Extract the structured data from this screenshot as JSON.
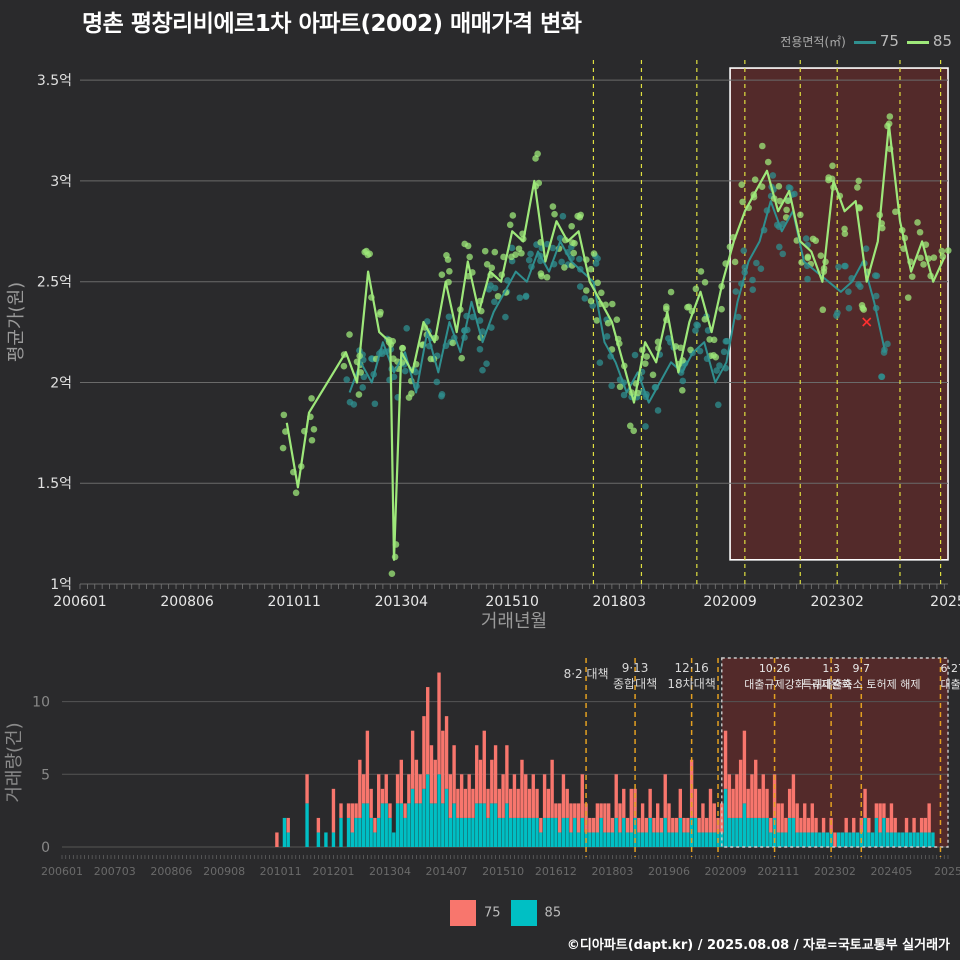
{
  "title": "명촌 평창리비에르1차 아파트(2002) 매매가격 변화",
  "credit": "©디아파트(dapt.kr) / 2025.08.08 / 자료=국토교통부 실거래가",
  "colors": {
    "s75": "#2f8f8f",
    "s85": "#9ee87a",
    "bar75": "#f8766d",
    "bar85": "#00bfc4",
    "vline_top": "#e0e040",
    "vline_bottom": "#e3a020",
    "highlight": "#5a2a2a"
  },
  "legend_top": {
    "title": "전용면적(㎡)",
    "items": [
      {
        "label": "75",
        "color": "#2f8f8f"
      },
      {
        "label": "85",
        "color": "#9ee87a"
      }
    ]
  },
  "legend_bottom": {
    "items": [
      {
        "label": "75",
        "color": "#f8766d"
      },
      {
        "label": "85",
        "color": "#00bfc4"
      }
    ]
  },
  "chart_data": [
    {
      "type": "line",
      "xlabel": "거래년월",
      "ylabel": "평균가(원)",
      "x_range": [
        "2006-01",
        "2025-08"
      ],
      "ylim": [
        1.0,
        3.6
      ],
      "y_ticks": [
        {
          "v": 1.0,
          "label": "1억"
        },
        {
          "v": 1.5,
          "label": "1.5억"
        },
        {
          "v": 2.0,
          "label": "2억"
        },
        {
          "v": 2.5,
          "label": "2.5억"
        },
        {
          "v": 3.0,
          "label": "3억"
        },
        {
          "v": 3.5,
          "label": "3.5억"
        }
      ],
      "x_ticks": [
        {
          "t": "2006-01",
          "label": "200601"
        },
        {
          "t": "2008-06",
          "label": "200806"
        },
        {
          "t": "2010-11",
          "label": "201011"
        },
        {
          "t": "2013-04",
          "label": "201304"
        },
        {
          "t": "2015-10",
          "label": "201510"
        },
        {
          "t": "2018-03",
          "label": "201803"
        },
        {
          "t": "2020-09",
          "label": "202009"
        },
        {
          "t": "2023-02",
          "label": "202302"
        },
        {
          "t": "2025-08",
          "label": "2025"
        }
      ],
      "vlines": [
        "2017-08",
        "2018-09",
        "2019-12",
        "2021-01",
        "2022-04",
        "2023-02",
        "2024-07",
        "2025-06"
      ],
      "highlight": {
        "x": [
          "2020-09",
          "2025-09"
        ],
        "y": [
          1.12,
          3.56
        ]
      },
      "marker": {
        "t": "2023-10",
        "v": 2.3
      },
      "series": [
        {
          "name": "75",
          "points": [
            [
              "2012-02",
              1.95
            ],
            [
              "2012-05",
              2.1
            ],
            [
              "2012-08",
              2.0
            ],
            [
              "2012-11",
              2.2
            ],
            [
              "2013-02",
              2.05
            ],
            [
              "2013-05",
              2.15
            ],
            [
              "2013-08",
              1.95
            ],
            [
              "2013-11",
              2.25
            ],
            [
              "2014-02",
              2.05
            ],
            [
              "2014-05",
              2.3
            ],
            [
              "2014-08",
              2.15
            ],
            [
              "2014-11",
              2.4
            ],
            [
              "2015-02",
              2.2
            ],
            [
              "2015-05",
              2.35
            ],
            [
              "2015-08",
              2.45
            ],
            [
              "2015-11",
              2.55
            ],
            [
              "2016-02",
              2.5
            ],
            [
              "2016-05",
              2.65
            ],
            [
              "2016-08",
              2.55
            ],
            [
              "2016-11",
              2.7
            ],
            [
              "2017-02",
              2.6
            ],
            [
              "2017-05",
              2.55
            ],
            [
              "2017-08",
              2.5
            ],
            [
              "2017-11",
              2.2
            ],
            [
              "2018-02",
              2.1
            ],
            [
              "2018-05",
              1.95
            ],
            [
              "2018-08",
              2.05
            ],
            [
              "2018-11",
              1.9
            ],
            [
              "2019-02",
              2.0
            ],
            [
              "2019-05",
              2.1
            ],
            [
              "2019-08",
              2.05
            ],
            [
              "2019-11",
              2.15
            ],
            [
              "2020-02",
              2.2
            ],
            [
              "2020-05",
              2.0
            ],
            [
              "2020-08",
              2.1
            ],
            [
              "2020-11",
              2.4
            ],
            [
              "2021-02",
              2.6
            ],
            [
              "2021-05",
              2.7
            ],
            [
              "2021-08",
              2.9
            ],
            [
              "2021-11",
              2.75
            ],
            [
              "2022-02",
              2.85
            ],
            [
              "2022-05",
              2.6
            ],
            [
              "2023-03",
              2.45
            ],
            [
              "2023-06",
              2.5
            ],
            [
              "2023-09",
              2.6
            ],
            [
              "2023-12",
              2.4
            ],
            [
              "2024-03",
              2.15
            ]
          ]
        },
        {
          "name": "85",
          "points": [
            [
              "2010-09",
              1.8
            ],
            [
              "2010-12",
              1.48
            ],
            [
              "2011-03",
              1.85
            ],
            [
              "2012-01",
              2.15
            ],
            [
              "2012-04",
              2.0
            ],
            [
              "2012-07",
              2.55
            ],
            [
              "2012-10",
              2.25
            ],
            [
              "2013-01",
              2.2
            ],
            [
              "2013-02",
              1.12
            ],
            [
              "2013-04",
              2.15
            ],
            [
              "2013-07",
              2.05
            ],
            [
              "2013-10",
              2.3
            ],
            [
              "2014-01",
              2.2
            ],
            [
              "2014-04",
              2.5
            ],
            [
              "2014-07",
              2.25
            ],
            [
              "2014-10",
              2.6
            ],
            [
              "2015-01",
              2.35
            ],
            [
              "2015-04",
              2.55
            ],
            [
              "2015-07",
              2.5
            ],
            [
              "2015-10",
              2.75
            ],
            [
              "2016-01",
              2.7
            ],
            [
              "2016-04",
              3.0
            ],
            [
              "2016-07",
              2.6
            ],
            [
              "2016-10",
              2.8
            ],
            [
              "2017-01",
              2.7
            ],
            [
              "2017-04",
              2.75
            ],
            [
              "2017-07",
              2.5
            ],
            [
              "2017-10",
              2.4
            ],
            [
              "2018-01",
              2.3
            ],
            [
              "2018-04",
              2.1
            ],
            [
              "2018-07",
              1.9
            ],
            [
              "2018-10",
              2.2
            ],
            [
              "2019-01",
              2.1
            ],
            [
              "2019-04",
              2.35
            ],
            [
              "2019-07",
              2.05
            ],
            [
              "2019-10",
              2.3
            ],
            [
              "2020-01",
              2.45
            ],
            [
              "2020-04",
              2.25
            ],
            [
              "2020-07",
              2.5
            ],
            [
              "2020-10",
              2.7
            ],
            [
              "2021-01",
              2.85
            ],
            [
              "2021-04",
              2.95
            ],
            [
              "2021-07",
              3.05
            ],
            [
              "2021-10",
              2.85
            ],
            [
              "2022-01",
              2.95
            ],
            [
              "2022-04",
              2.7
            ],
            [
              "2022-07",
              2.65
            ],
            [
              "2022-10",
              2.5
            ],
            [
              "2023-01",
              3.0
            ],
            [
              "2023-04",
              2.85
            ],
            [
              "2023-07",
              2.9
            ],
            [
              "2023-10",
              2.5
            ],
            [
              "2024-01",
              2.7
            ],
            [
              "2024-04",
              3.28
            ],
            [
              "2024-07",
              2.8
            ],
            [
              "2024-10",
              2.55
            ],
            [
              "2025-01",
              2.7
            ],
            [
              "2025-04",
              2.5
            ],
            [
              "2025-07",
              2.62
            ]
          ]
        }
      ]
    },
    {
      "type": "bar",
      "ylabel": "거래량(건)",
      "ylim": [
        0,
        13
      ],
      "y_ticks": [
        0,
        5,
        10
      ],
      "x_ticks": [
        {
          "t": "2006-01",
          "label": "200601"
        },
        {
          "t": "2007-03",
          "label": "200703"
        },
        {
          "t": "2008-06",
          "label": "200806"
        },
        {
          "t": "2009-08",
          "label": "200908"
        },
        {
          "t": "2010-11",
          "label": "201011"
        },
        {
          "t": "2012-01",
          "label": "201201"
        },
        {
          "t": "2013-04",
          "label": "201304"
        },
        {
          "t": "2014-07",
          "label": "201407"
        },
        {
          "t": "2015-10",
          "label": "201510"
        },
        {
          "t": "2016-12",
          "label": "201612"
        },
        {
          "t": "2018-03",
          "label": "201803"
        },
        {
          "t": "2019-06",
          "label": "201906"
        },
        {
          "t": "2020-09",
          "label": "202009"
        },
        {
          "t": "2021-11",
          "label": "202111"
        },
        {
          "t": "2023-02",
          "label": "202302"
        },
        {
          "t": "2024-05",
          "label": "202405"
        },
        {
          "t": "2025-08",
          "label": "2025"
        }
      ],
      "events": [
        {
          "t": "2017-08",
          "lines": [
            "8·2 대책"
          ]
        },
        {
          "t": "2018-09",
          "lines": [
            "9·13",
            "종합대책"
          ]
        },
        {
          "t": "2019-12",
          "lines": [
            "12·16",
            "18차대책"
          ]
        },
        {
          "t": "2020-07",
          "lines": [
            ""
          ]
        },
        {
          "t": "2021-10",
          "lines": [
            "10·26",
            "대출규제강화"
          ]
        },
        {
          "t": "2023-01",
          "lines": [
            "1·3",
            "규제완화"
          ]
        },
        {
          "t": "2023-09",
          "lines": [
            "9·7",
            "특례대출축소 토허제 해제"
          ]
        },
        {
          "t": "2025-06",
          "lines": [
            "6·27",
            "대출규"
          ]
        }
      ],
      "highlight": {
        "x": [
          "2020-08",
          "2025-09"
        ],
        "y": [
          0,
          13
        ]
      },
      "series": [
        {
          "name": "75",
          "color": "#f8766d"
        },
        {
          "name": "85",
          "color": "#00bfc4"
        }
      ],
      "months": [
        "2010-10",
        "2010-12",
        "2011-01",
        "2011-06",
        "2011-09",
        "2011-11",
        "2012-01",
        "2012-03",
        "2012-05",
        "2012-06",
        "2012-07",
        "2012-08",
        "2012-09",
        "2012-10",
        "2012-11",
        "2012-12",
        "2013-01",
        "2013-02",
        "2013-03",
        "2013-04",
        "2013-05",
        "2013-06",
        "2013-07",
        "2013-08",
        "2013-09",
        "2013-10",
        "2013-11",
        "2013-12",
        "2014-01",
        "2014-02",
        "2014-03",
        "2014-04",
        "2014-05",
        "2014-06",
        "2014-07",
        "2014-08",
        "2014-09",
        "2014-10",
        "2014-11",
        "2014-12",
        "2015-01",
        "2015-02",
        "2015-03",
        "2015-04",
        "2015-05",
        "2015-06",
        "2015-07",
        "2015-08",
        "2015-09",
        "2015-10",
        "2015-11",
        "2015-12",
        "2016-01",
        "2016-02",
        "2016-03",
        "2016-04",
        "2016-05",
        "2016-06",
        "2016-07",
        "2016-08",
        "2016-09",
        "2016-10",
        "2016-11",
        "2016-12",
        "2017-01",
        "2017-02",
        "2017-03",
        "2017-04",
        "2017-05",
        "2017-06",
        "2017-07",
        "2017-08",
        "2017-09",
        "2017-10",
        "2017-11",
        "2017-12",
        "2018-01",
        "2018-02",
        "2018-03",
        "2018-04",
        "2018-05",
        "2018-06",
        "2018-07",
        "2018-08",
        "2018-09",
        "2018-10",
        "2018-11",
        "2018-12",
        "2019-01",
        "2019-02",
        "2019-03",
        "2019-04",
        "2019-05",
        "2019-06",
        "2019-07",
        "2019-08",
        "2019-09",
        "2019-10",
        "2019-11",
        "2019-12",
        "2020-01",
        "2020-02",
        "2020-03",
        "2020-04",
        "2020-05",
        "2020-06",
        "2020-07",
        "2020-08",
        "2020-09",
        "2020-10",
        "2020-11",
        "2020-12",
        "2021-01",
        "2021-02",
        "2021-03",
        "2021-04",
        "2021-05",
        "2021-06",
        "2021-07",
        "2021-08",
        "2021-09",
        "2021-10",
        "2021-11",
        "2021-12",
        "2022-01",
        "2022-02",
        "2022-03",
        "2022-04",
        "2022-05",
        "2022-06",
        "2022-07",
        "2022-08",
        "2022-09",
        "2022-10",
        "2022-11",
        "2022-12",
        "2023-01",
        "2023-02",
        "2023-03",
        "2023-04",
        "2023-05",
        "2023-06",
        "2023-07",
        "2023-08",
        "2023-09",
        "2023-10",
        "2023-11",
        "2023-12",
        "2024-01",
        "2024-02",
        "2024-03",
        "2024-04",
        "2024-05",
        "2024-06",
        "2024-07",
        "2024-08",
        "2024-09",
        "2024-10",
        "2024-11",
        "2024-12",
        "2025-01",
        "2025-02",
        "2025-03",
        "2025-04",
        "2025-05",
        "2025-06",
        "2025-07"
      ],
      "counts75": [
        1,
        0,
        1,
        2,
        1,
        0,
        3,
        1,
        1,
        2,
        1,
        4,
        2,
        5,
        2,
        1,
        3,
        1,
        2,
        1,
        0,
        2,
        3,
        1,
        2,
        4,
        3,
        2,
        5,
        6,
        4,
        3,
        7,
        5,
        5,
        3,
        4,
        2,
        3,
        2,
        3,
        2,
        4,
        3,
        5,
        2,
        3,
        4,
        2,
        3,
        4,
        2,
        3,
        2,
        4,
        3,
        2,
        3,
        2,
        1,
        3,
        2,
        4,
        1,
        2,
        3,
        2,
        2,
        1,
        2,
        3,
        2,
        1,
        1,
        2,
        1,
        2,
        2,
        1,
        3,
        2,
        2,
        1,
        3,
        2,
        1,
        2,
        1,
        2,
        1,
        2,
        1,
        3,
        2,
        1,
        1,
        2,
        1,
        1,
        4,
        2,
        1,
        2,
        1,
        3,
        2,
        1,
        2,
        4,
        3,
        2,
        3,
        4,
        5,
        2,
        3,
        4,
        2,
        3,
        2,
        1,
        3,
        2,
        2,
        1,
        2,
        3,
        2,
        1,
        2,
        1,
        2,
        1,
        0,
        1,
        0,
        1,
        1,
        0,
        0,
        1,
        0,
        1,
        0,
        1,
        2,
        1,
        0,
        1,
        2,
        1,
        1,
        2,
        1,
        0,
        0,
        1,
        0,
        1,
        0,
        1,
        1,
        2
      ],
      "counts85": [
        0,
        2,
        1,
        3,
        1,
        1,
        1,
        2,
        2,
        1,
        2,
        2,
        3,
        3,
        2,
        1,
        2,
        3,
        3,
        2,
        1,
        3,
        3,
        2,
        3,
        4,
        3,
        3,
        4,
        5,
        3,
        3,
        5,
        3,
        4,
        2,
        3,
        2,
        2,
        2,
        2,
        2,
        3,
        3,
        3,
        2,
        3,
        3,
        2,
        2,
        3,
        2,
        2,
        2,
        2,
        2,
        2,
        2,
        2,
        1,
        2,
        2,
        2,
        2,
        1,
        2,
        2,
        1,
        2,
        1,
        2,
        1,
        1,
        1,
        1,
        2,
        1,
        1,
        1,
        2,
        1,
        2,
        1,
        1,
        2,
        1,
        1,
        1,
        2,
        1,
        1,
        1,
        2,
        1,
        1,
        1,
        2,
        1,
        1,
        2,
        2,
        1,
        1,
        1,
        1,
        1,
        1,
        1,
        4,
        2,
        2,
        2,
        2,
        3,
        2,
        2,
        2,
        2,
        2,
        2,
        1,
        2,
        1,
        1,
        1,
        2,
        2,
        1,
        1,
        1,
        1,
        1,
        1,
        1,
        1,
        1,
        1,
        0,
        1,
        1,
        1,
        1,
        1,
        1,
        1,
        2,
        1,
        1,
        2,
        1,
        2,
        1,
        1,
        1,
        1,
        1,
        1,
        1,
        1,
        1,
        1,
        1,
        1,
        1
      ]
    }
  ]
}
